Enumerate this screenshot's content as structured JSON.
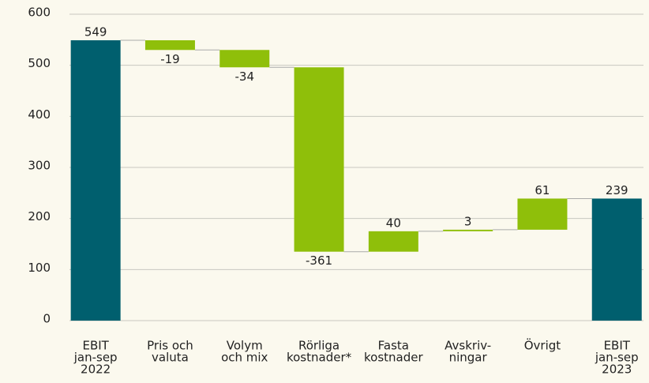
{
  "chart_data": {
    "type": "waterfall",
    "categories": [
      [
        "EBIT",
        "jan-sep",
        "2022"
      ],
      [
        "Pris och",
        "valuta"
      ],
      [
        "Volym",
        "och mix"
      ],
      [
        "Rörliga",
        "kostnader*"
      ],
      [
        "Fasta",
        "kostnader"
      ],
      [
        "Avskriv-",
        "ningar"
      ],
      [
        "Övrigt"
      ],
      [
        "EBIT",
        "jan-sep",
        "2023"
      ]
    ],
    "values": [
      549,
      -19,
      -34,
      -361,
      40,
      3,
      61,
      239
    ],
    "is_total": [
      true,
      false,
      false,
      false,
      false,
      false,
      false,
      true
    ],
    "total_color": "#005f6e",
    "change_color": "#8fbf0a",
    "ylim": [
      0,
      600
    ],
    "yticks": [
      0,
      100,
      200,
      300,
      400,
      500,
      600
    ],
    "grid": true
  }
}
